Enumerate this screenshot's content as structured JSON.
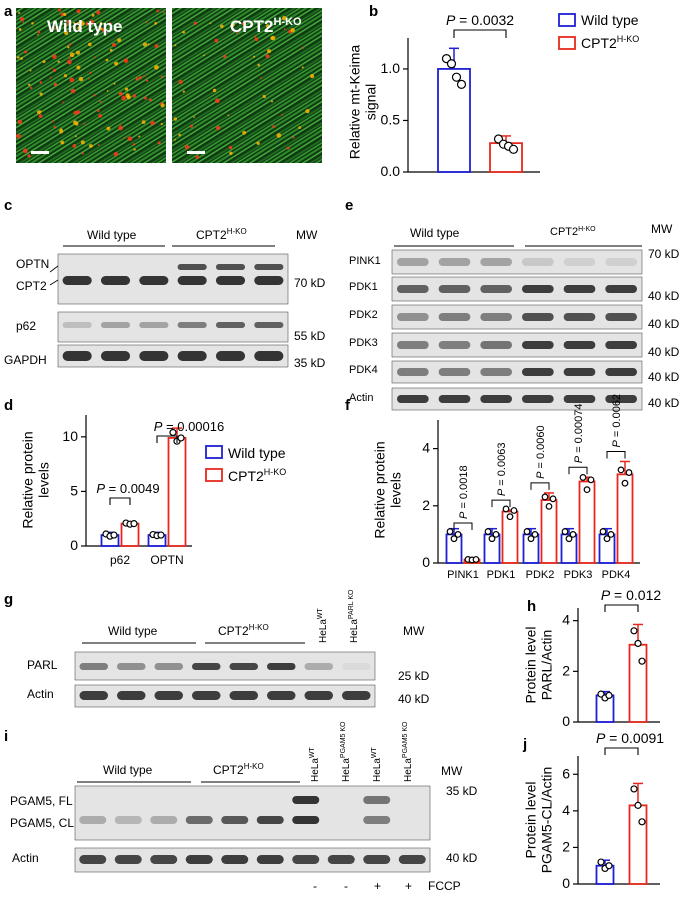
{
  "panel_a": {
    "label": "a",
    "image_labels": [
      "Wild type",
      "CPT2"
    ],
    "sup": "H-KO"
  },
  "panel_b": {
    "label": "b",
    "p": "P = 0.0032"
  },
  "panel_c": {
    "label": "c",
    "groups": [
      "Wild type",
      "CPT2"
    ],
    "sup": "H-KO",
    "mw": "MW",
    "rows": [
      "OPTN",
      "CPT2",
      "p62",
      "GAPDH"
    ],
    "markers": [
      "70 kD",
      "55 kD",
      "35 kD"
    ]
  },
  "panel_d": {
    "label": "d",
    "p": [
      "P = 0.0049",
      "P = 0.00016"
    ]
  },
  "panel_e": {
    "label": "e",
    "groups": [
      "Wild type",
      "CPT2"
    ],
    "sup": "H-KO",
    "mw": "MW",
    "rows": [
      "PINK1",
      "PDK1",
      "PDK2",
      "PDK3",
      "PDK4",
      "Actin"
    ],
    "markers": [
      "70 kD",
      "40 kD",
      "40 kD",
      "40 kD",
      "40 kD",
      "40 kD"
    ]
  },
  "panel_f": {
    "label": "f",
    "p": [
      "P = 0.0018",
      "P = 0.0063",
      "P = 0.0060",
      "P = 0.00074",
      "P = 0.0062"
    ]
  },
  "panel_g": {
    "label": "g",
    "groups": [
      "Wild type",
      "CPT2"
    ],
    "sup": "H-KO",
    "hela": [
      "HeLa",
      "HeLa"
    ],
    "hela_sup": [
      "WT",
      "PARL KO"
    ],
    "mw": "MW",
    "rows": [
      "PARL",
      "Actin"
    ],
    "markers": [
      "25 kD",
      "40 kD"
    ]
  },
  "panel_h": {
    "label": "h",
    "p": "P = 0.012"
  },
  "panel_i": {
    "label": "i",
    "groups": [
      "Wild type",
      "CPT2"
    ],
    "sup": "H-KO",
    "hela": [
      "HeLa",
      "HeLa",
      "HeLa",
      "HeLa"
    ],
    "hela_sup": [
      "WT",
      "PGAM5 KO",
      "WT",
      "PGAM5 KO"
    ],
    "mw": "MW",
    "rows": [
      "PGAM5, FL",
      "PGAM5, CL",
      "Actin"
    ],
    "markers": [
      "35 kD",
      "40 kD"
    ],
    "fccp": [
      "-",
      "-",
      "+",
      "+"
    ],
    "fccp_label": "FCCP"
  },
  "panel_j": {
    "label": "j",
    "p": "P = 0.0091"
  },
  "legend": {
    "wt": "Wild type",
    "ko": "CPT2",
    "ko_sup": "H-KO"
  },
  "colors": {
    "wt": "#1f1fd6",
    "ko": "#e8281e",
    "blot_bg": "#e4e4e4",
    "band": "#2a2a2a"
  },
  "chart_data": [
    {
      "panel": "b",
      "type": "bar",
      "categories": [
        "Wild type",
        "CPT2H-KO"
      ],
      "values": [
        1.0,
        0.28
      ],
      "points": [
        [
          1.1,
          1.05,
          0.92,
          0.85
        ],
        [
          0.32,
          0.27,
          0.25,
          0.22
        ]
      ],
      "ylabel": "Relative mt-Keima signal",
      "ylim": [
        0,
        1.3
      ],
      "yticks": [
        "0.0",
        "0.5",
        "1.0"
      ],
      "tick_values": [
        0,
        0.5,
        1.0
      ]
    },
    {
      "panel": "d",
      "type": "bar",
      "categories": [
        "p62",
        "OPTN"
      ],
      "series": [
        {
          "name": "Wild type",
          "values": [
            1.0,
            1.0
          ]
        },
        {
          "name": "CPT2H-KO",
          "values": [
            2.05,
            9.9
          ]
        }
      ],
      "ylabel": "Relative protein levels",
      "ylim": [
        0,
        12
      ],
      "yticks": [
        "0",
        "5",
        "10"
      ],
      "tick_values": [
        0,
        5,
        10
      ]
    },
    {
      "panel": "f",
      "type": "bar",
      "categories": [
        "PINK1",
        "PDK1",
        "PDK2",
        "PDK3",
        "PDK4"
      ],
      "series": [
        {
          "name": "Wild type",
          "values": [
            1.0,
            1.0,
            1.0,
            1.0,
            1.0
          ]
        },
        {
          "name": "CPT2H-KO",
          "values": [
            0.12,
            1.8,
            2.2,
            2.85,
            3.1
          ]
        }
      ],
      "ylabel": "Relative protein levels",
      "ylim": [
        0,
        5
      ],
      "yticks": [
        "0",
        "2",
        "4"
      ],
      "tick_values": [
        0,
        2,
        4
      ]
    },
    {
      "panel": "h",
      "type": "bar",
      "categories": [
        "Wild type",
        "CPT2H-KO"
      ],
      "values": [
        1.05,
        3.05
      ],
      "ylabel": "Protein level PARL/Actin",
      "ylim": [
        0,
        4.5
      ],
      "yticks": [
        "0",
        "2",
        "4"
      ],
      "tick_values": [
        0,
        2,
        4
      ]
    },
    {
      "panel": "j",
      "type": "bar",
      "categories": [
        "Wild type",
        "CPT2H-KO"
      ],
      "values": [
        1.0,
        4.3
      ],
      "ylabel": "Protein level PGAM5-CL/Actin",
      "ylim": [
        0,
        7
      ],
      "yticks": [
        "0",
        "2",
        "4",
        "6"
      ],
      "tick_values": [
        0,
        2,
        4,
        6
      ]
    }
  ]
}
